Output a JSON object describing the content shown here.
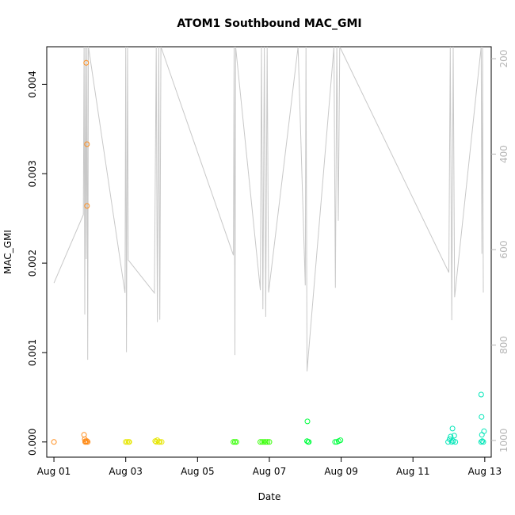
{
  "chart_data": {
    "type": "scatter",
    "title": "ATOM1 Southbound MAC_GMI",
    "xlabel": "Date",
    "ylabel": "MAC_GMI",
    "x_ticks": [
      "Aug 01",
      "Aug 03",
      "Aug 05",
      "Aug 07",
      "Aug 09",
      "Aug 11",
      "Aug 13"
    ],
    "x_tick_days": [
      1,
      3,
      5,
      7,
      9,
      11,
      13
    ],
    "xlim": [
      0.8,
      13.18
    ],
    "y_ticks": [
      "0.000",
      "0.001",
      "0.002",
      "0.003",
      "0.004"
    ],
    "y_tick_values": [
      0,
      0.001,
      0.002,
      0.003,
      0.004
    ],
    "ylim": [
      -0.00017,
      0.00442
    ],
    "y2_ticks": [
      "200",
      "400",
      "600",
      "800",
      "1000"
    ],
    "y2_tick_values": [
      200,
      400,
      600,
      800,
      1000
    ],
    "y2lim": [
      1035,
      175
    ],
    "grid": false,
    "legend": "none",
    "colors": {
      "series_day1": "#ff8c1a",
      "series_day3": "#e6e600",
      "series_day6": "#33ff00",
      "series_day8": "#00ff40",
      "series_day12": "#00e6b8",
      "line": "#c8c8c8"
    },
    "series": [
      {
        "color": "#ff8c1a",
        "x": [
          1.0,
          1.84,
          1.86,
          1.88,
          1.9,
          1.92,
          1.94,
          1.9,
          1.92,
          1.92,
          1.87
        ],
        "y": [
          0,
          8e-05,
          3e-05,
          1e-05,
          0.0,
          1e-05,
          0.0,
          0.00424,
          0.00333,
          0.00264,
          0.0
        ]
      },
      {
        "color": "#e6e600",
        "x": [
          3.0,
          3.04,
          3.08,
          3.1,
          3.85,
          3.88,
          3.92,
          3.95,
          4.0,
          3.82
        ],
        "y": [
          0,
          0,
          0,
          0,
          0,
          2e-05,
          0,
          0,
          0,
          1e-05
        ]
      },
      {
        "color": "#33ff00",
        "x": [
          6.0,
          6.04,
          6.08,
          6.75,
          6.8,
          6.85,
          6.9,
          6.95,
          7.0
        ],
        "y": [
          0,
          0,
          0,
          0,
          0,
          0,
          0,
          0,
          0
        ]
      },
      {
        "color": "#00ff40",
        "x": [
          8.05,
          8.08,
          8.1,
          8.83,
          8.88,
          8.93,
          8.98,
          8.06
        ],
        "y": [
          1e-05,
          0,
          0,
          0,
          0,
          1e-05,
          2e-05,
          0.00023
        ]
      },
      {
        "color": "#00e6b8",
        "x": [
          11.98,
          12.02,
          12.05,
          12.08,
          12.12,
          12.18,
          12.1,
          12.15,
          12.9,
          12.93,
          12.96,
          12.98,
          12.91,
          12.9,
          12.92
        ],
        "y": [
          0,
          3e-05,
          6e-05,
          0,
          1e-05,
          0,
          0.00015,
          7e-05,
          0,
          1e-05,
          0,
          0.00012,
          0.00028,
          0.00053,
          8e-05
        ]
      }
    ],
    "line_series": {
      "color": "#c8c8c8",
      "axis": "right",
      "x": [
        1.0,
        1.82,
        1.84,
        1.86,
        1.88,
        1.9,
        1.92,
        1.94,
        1.96,
        2.98,
        3.0,
        3.02,
        3.05,
        3.07,
        3.8,
        3.85,
        3.88,
        3.92,
        3.95,
        3.98,
        6.0,
        6.02,
        6.04,
        6.06,
        6.75,
        6.78,
        6.82,
        6.86,
        6.9,
        6.94,
        6.98,
        7.8,
        8.0,
        8.02,
        8.05,
        8.8,
        8.84,
        8.88,
        8.92,
        8.96,
        12.0,
        12.04,
        12.08,
        12.12,
        12.16,
        12.9,
        12.92,
        12.94,
        12.96
      ],
      "y": [
        670,
        527,
        175,
        736,
        175,
        620,
        175,
        831,
        175,
        691,
        175,
        815,
        175,
        622,
        691,
        175,
        752,
        175,
        747,
        175,
        612,
        175,
        821,
        175,
        685,
        175,
        725,
        175,
        741,
        175,
        690,
        175,
        675,
        175,
        855,
        175,
        680,
        175,
        540,
        175,
        648,
        175,
        748,
        175,
        700,
        175,
        609,
        175,
        690
      ]
    }
  }
}
